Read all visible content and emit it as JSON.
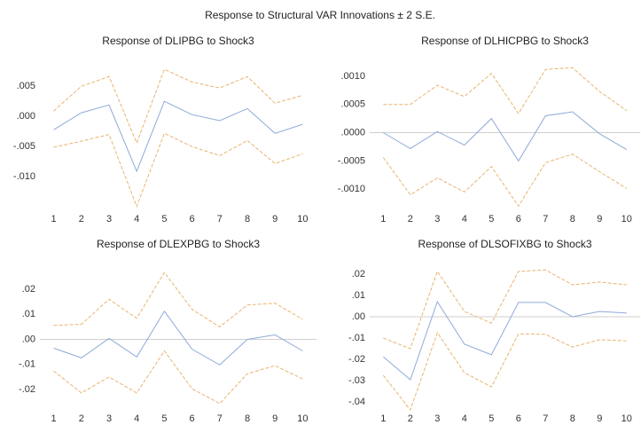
{
  "title": "Response to Structural VAR Innovations ± 2 S.E.",
  "chart_data": [
    {
      "type": "line",
      "title": "Response of DLIPBG to Shock3",
      "x": [
        1,
        2,
        3,
        4,
        5,
        6,
        7,
        8,
        9,
        10
      ],
      "xlim": [
        0.5,
        10.5
      ],
      "ylim": [
        -0.0157,
        0.009
      ],
      "yticks": [
        {
          "value": 0.005,
          "label": ".005"
        },
        {
          "value": 0,
          "label": ".000"
        },
        {
          "value": -0.005,
          "label": "-.005"
        },
        {
          "value": -0.01,
          "label": "-.010"
        }
      ],
      "zero_line": false,
      "series": [
        {
          "color": "#8eaad8",
          "dashed": false,
          "values": [
            -0.0022,
            0.0006,
            0.0019,
            -0.0091,
            0.0025,
            0.0003,
            -0.0007,
            0.0013,
            -0.0028,
            -0.0013
          ]
        },
        {
          "color": "#e9b46e",
          "dashed": true,
          "values": [
            0.0009,
            0.005,
            0.0066,
            -0.0044,
            0.0078,
            0.0057,
            0.0047,
            0.0066,
            0.0022,
            0.0035
          ]
        },
        {
          "color": "#e9b46e",
          "dashed": true,
          "values": [
            -0.0051,
            -0.0041,
            -0.003,
            -0.0149,
            -0.0028,
            -0.005,
            -0.0065,
            -0.004,
            -0.0078,
            -0.0062
          ]
        }
      ]
    },
    {
      "type": "line",
      "title": "Response of DLHICPBG to Shock3",
      "x": [
        1,
        2,
        3,
        4,
        5,
        6,
        7,
        8,
        9,
        10
      ],
      "xlim": [
        0.5,
        10.5
      ],
      "ylim": [
        -0.00139,
        0.00125
      ],
      "yticks": [
        {
          "value": 0.001,
          "label": ".0010"
        },
        {
          "value": 0.0005,
          "label": ".0005"
        },
        {
          "value": 0,
          "label": ".0000"
        },
        {
          "value": -0.0005,
          "label": "-.0005"
        },
        {
          "value": -0.001,
          "label": "-.0010"
        }
      ],
      "zero_line": true,
      "series": [
        {
          "color": "#8eaad8",
          "dashed": false,
          "values": [
            0,
            -0.00028,
            2e-05,
            -0.00022,
            0.00025,
            -0.0005,
            0.0003,
            0.00037,
            -2e-05,
            -0.0003
          ]
        },
        {
          "color": "#e9b46e",
          "dashed": true,
          "values": [
            0.0005,
            0.0005,
            0.00084,
            0.00064,
            0.00105,
            0.00034,
            0.00112,
            0.00115,
            0.00073,
            0.00039
          ]
        },
        {
          "color": "#e9b46e",
          "dashed": true,
          "values": [
            -0.00044,
            -0.0011,
            -0.0008,
            -0.00105,
            -0.0006,
            -0.0013,
            -0.00053,
            -0.00038,
            -0.00069,
            -0.00099
          ]
        }
      ]
    },
    {
      "type": "line",
      "title": "Response of DLEXPBG to Shock3",
      "x": [
        1,
        2,
        3,
        4,
        5,
        6,
        7,
        8,
        9,
        10
      ],
      "xlim": [
        0.5,
        10.5
      ],
      "ylim": [
        -0.0285,
        0.0299
      ],
      "yticks": [
        {
          "value": 0.02,
          "label": ".02"
        },
        {
          "value": 0.01,
          "label": ".01"
        },
        {
          "value": 0,
          "label": ".00"
        },
        {
          "value": -0.01,
          "label": "-.01"
        },
        {
          "value": -0.02,
          "label": "-.02"
        }
      ],
      "zero_line": true,
      "series": [
        {
          "color": "#8eaad8",
          "dashed": false,
          "values": [
            -0.0035,
            -0.0074,
            0.0004,
            -0.007,
            0.0112,
            -0.0039,
            -0.0102,
            0,
            0.0018,
            -0.0046
          ]
        },
        {
          "color": "#e9b46e",
          "dashed": true,
          "values": [
            0.0056,
            0.006,
            0.016,
            0.0084,
            0.0267,
            0.012,
            0.005,
            0.0137,
            0.0144,
            0.008
          ]
        },
        {
          "color": "#e9b46e",
          "dashed": true,
          "values": [
            -0.0126,
            -0.0214,
            -0.015,
            -0.0214,
            -0.0046,
            -0.0197,
            -0.0256,
            -0.0137,
            -0.0105,
            -0.0158
          ]
        }
      ]
    },
    {
      "type": "line",
      "title": "Response of DLSOFIXBG to Shock3",
      "x": [
        1,
        2,
        3,
        4,
        5,
        6,
        7,
        8,
        9,
        10
      ],
      "xlim": [
        0.5,
        10.5
      ],
      "ylim": [
        -0.0442,
        0.0246
      ],
      "yticks": [
        {
          "value": 0.02,
          "label": ".02"
        },
        {
          "value": 0.01,
          "label": ".01"
        },
        {
          "value": 0,
          "label": ".00"
        },
        {
          "value": -0.01,
          "label": "-.01"
        },
        {
          "value": -0.02,
          "label": "-.02"
        },
        {
          "value": -0.03,
          "label": "-.03"
        },
        {
          "value": -0.04,
          "label": "-.04"
        }
      ],
      "zero_line": true,
      "series": [
        {
          "color": "#8eaad8",
          "dashed": false,
          "values": [
            -0.0188,
            -0.0296,
            0.0071,
            -0.0129,
            -0.0179,
            0.0067,
            0.0067,
            0,
            0.0025,
            0.0017
          ]
        },
        {
          "color": "#e9b46e",
          "dashed": true,
          "values": [
            -0.01,
            -0.015,
            0.0213,
            0.0025,
            -0.003,
            0.0213,
            0.022,
            0.015,
            0.0163,
            0.015
          ]
        },
        {
          "color": "#e9b46e",
          "dashed": true,
          "values": [
            -0.0275,
            -0.0438,
            -0.0075,
            -0.0263,
            -0.033,
            -0.008,
            -0.0083,
            -0.0142,
            -0.0108,
            -0.0113
          ]
        }
      ]
    }
  ]
}
